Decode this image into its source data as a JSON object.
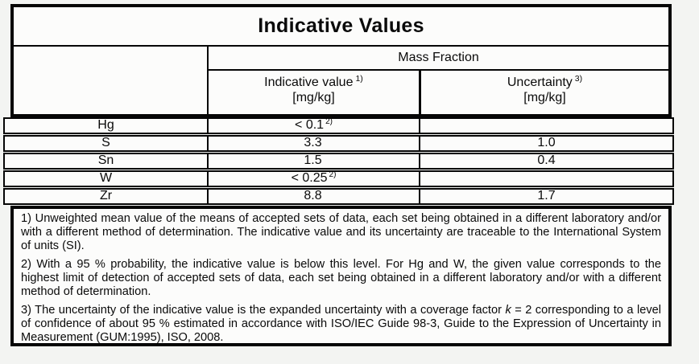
{
  "title": "Indicative Values",
  "table": {
    "group_header": "Mass Fraction",
    "columns": [
      {
        "label": "Indicative value",
        "footnote_ref": "1)",
        "unit": "[mg/kg]"
      },
      {
        "label": "Uncertainty",
        "footnote_ref": "3)",
        "unit": "[mg/kg]"
      }
    ],
    "rows": [
      {
        "element": "Hg",
        "indicative_value": "< 0.1",
        "value_footnote_ref": "2)",
        "uncertainty": ""
      },
      {
        "element": "S",
        "indicative_value": "3.3",
        "value_footnote_ref": "",
        "uncertainty": "1.0"
      },
      {
        "element": "Sn",
        "indicative_value": "1.5",
        "value_footnote_ref": "",
        "uncertainty": "0.4"
      },
      {
        "element": "W",
        "indicative_value": "< 0.25",
        "value_footnote_ref": "2)",
        "uncertainty": ""
      },
      {
        "element": "Zr",
        "indicative_value": "8.8",
        "value_footnote_ref": "",
        "uncertainty": "1.7"
      }
    ]
  },
  "footnotes": [
    {
      "text": "1) Unweighted mean value of the means of accepted sets of data, each set being obtained in a different laboratory and/or with a different method of determination. The indicative value and its uncertainty are traceable to the International System of units (SI)."
    },
    {
      "text": "2) With a 95 % probability, the indicative value is below this level. For Hg and W, the given value corresponds to the highest limit of detection of accepted sets of data, each set being obtained in a different laboratory and/or with a different method of determination."
    },
    {
      "before_k": "3) The uncertainty of the indicative value is the expanded uncertainty with a coverage factor ",
      "k_symbol": "k",
      "after_k": " = 2 corresponding to a level of confidence of about 95 % estimated in accordance with ISO/IEC Guide 98-3, Guide to the Expression of Uncertainty in Measurement (GUM:1995), ISO, 2008."
    }
  ],
  "colors": {
    "border": "#060606",
    "page_background": "#f3f4f2",
    "cell_background": "#fcfcfb"
  }
}
